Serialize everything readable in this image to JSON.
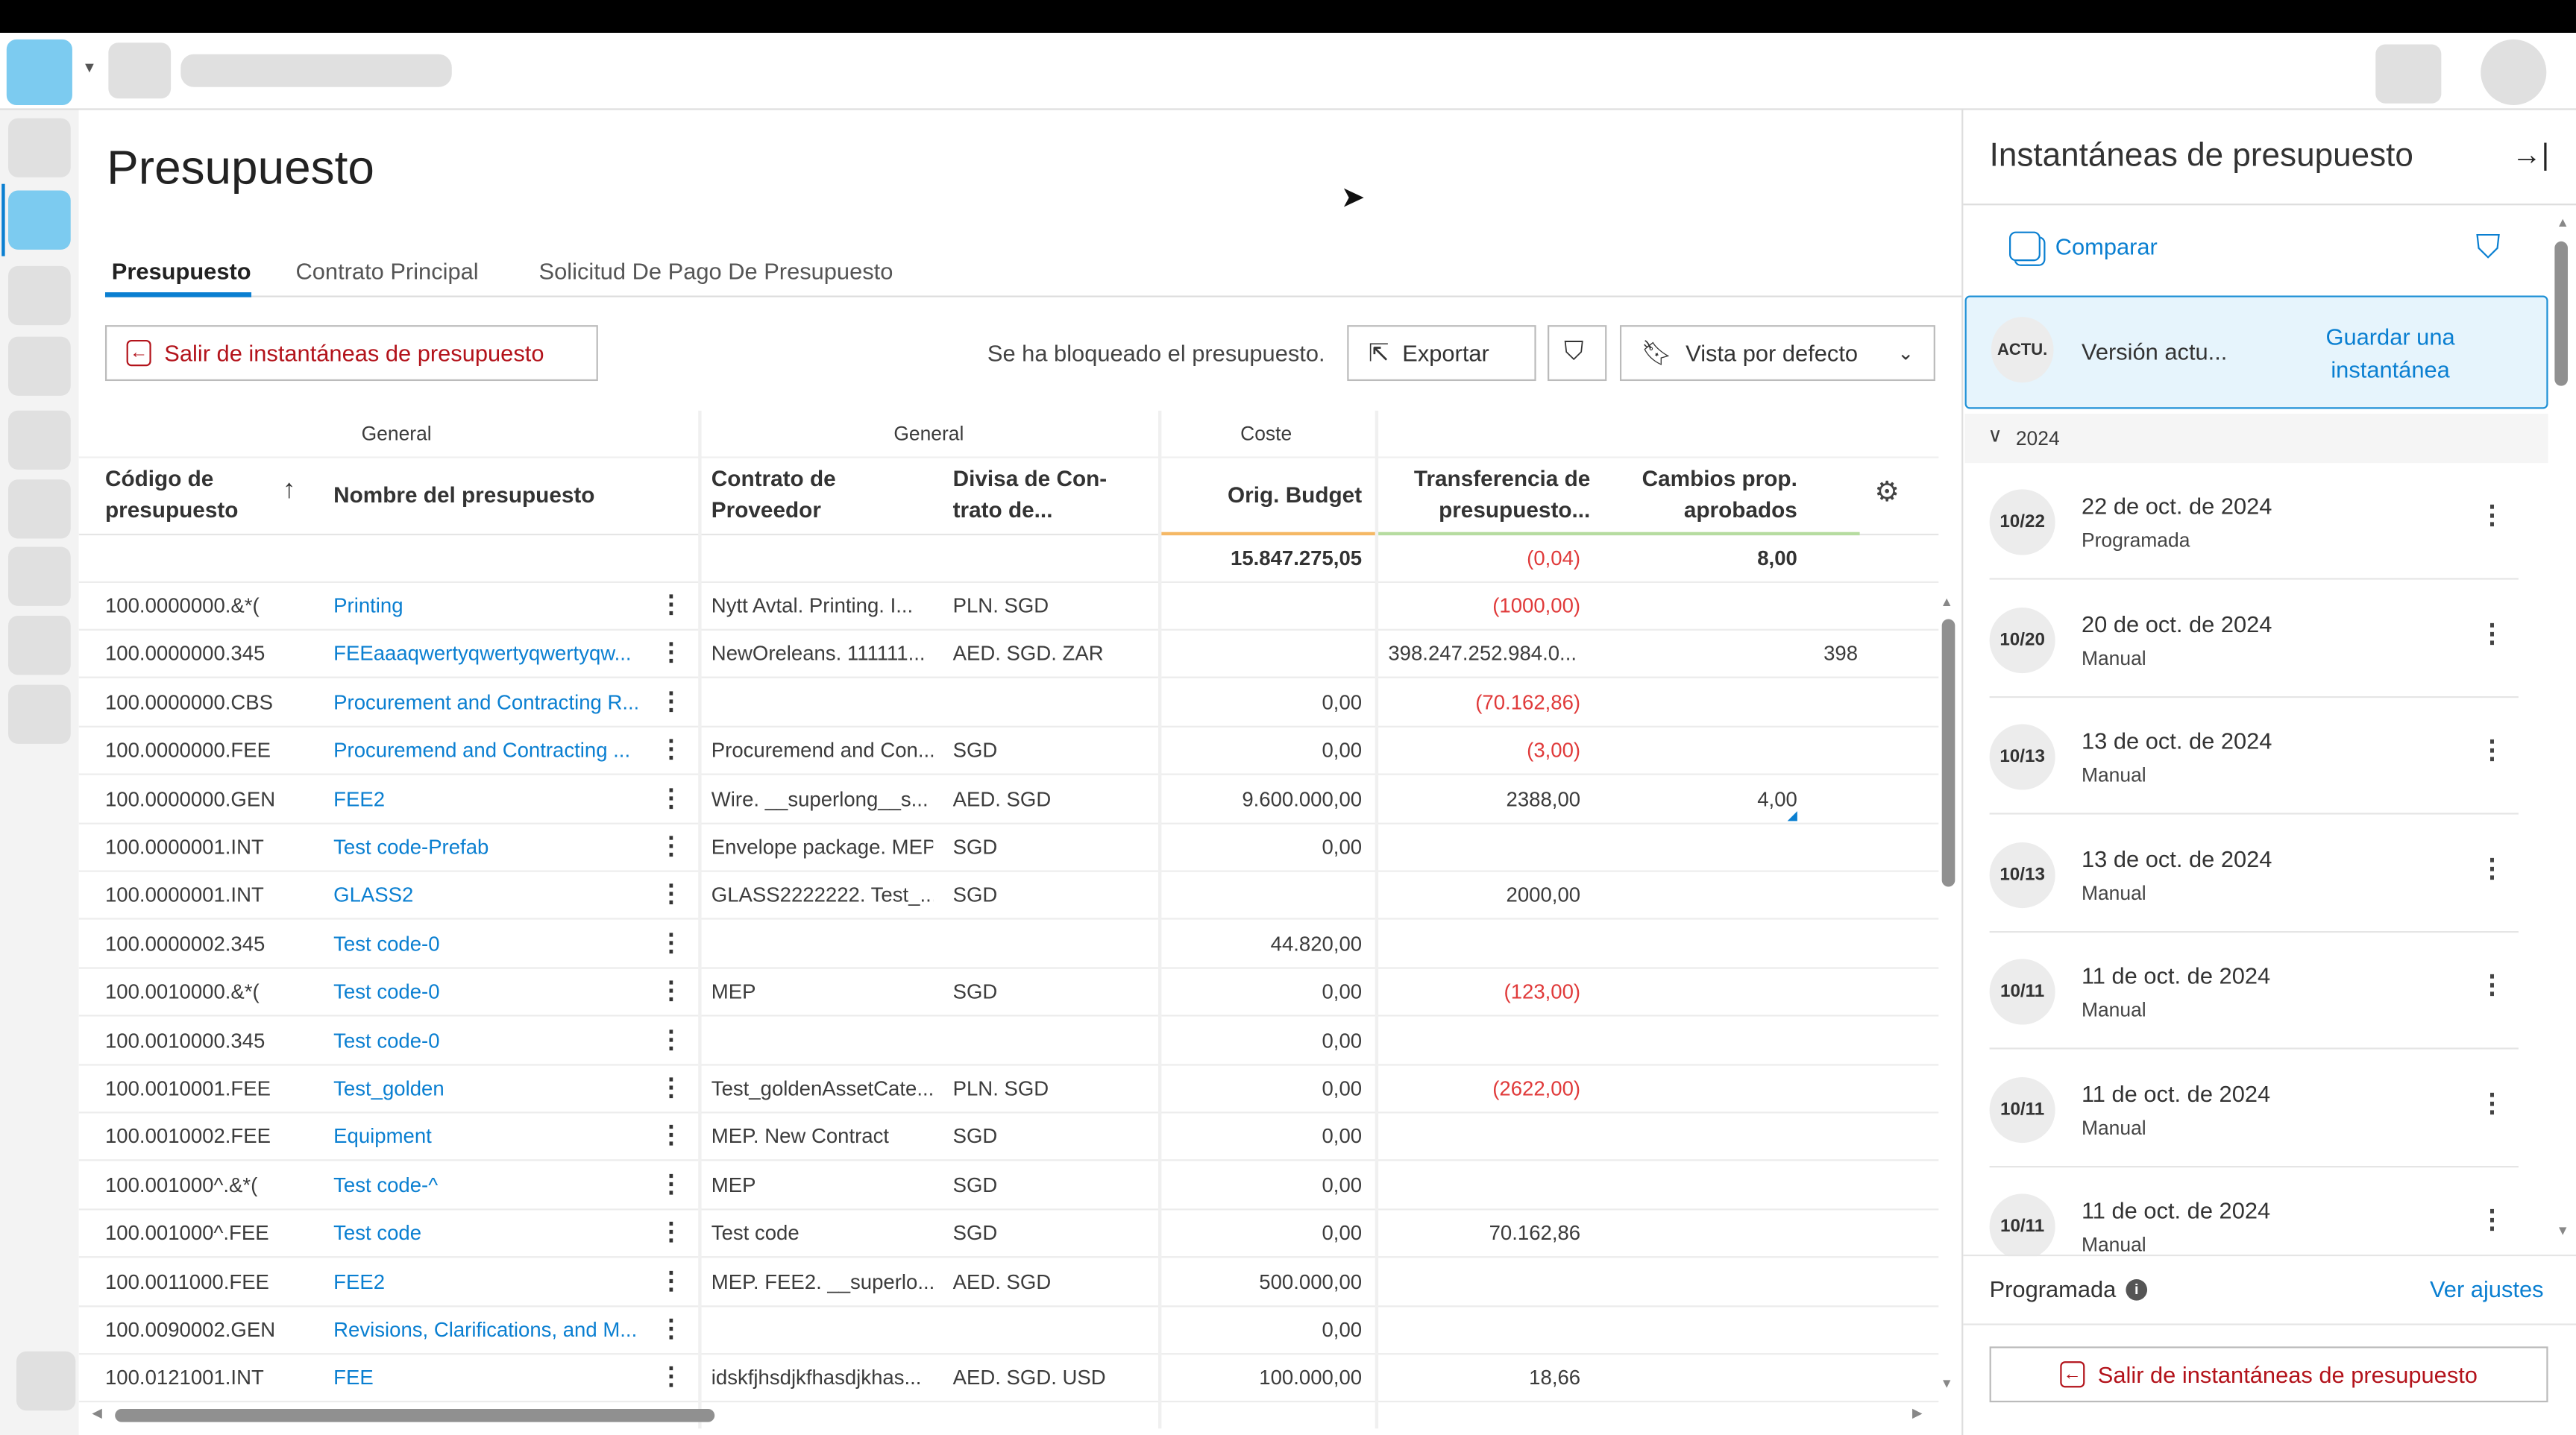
{
  "page": {
    "title": "Presupuesto"
  },
  "tabs": [
    {
      "label": "Presupuesto",
      "active": true
    },
    {
      "label": "Contrato Principal",
      "active": false
    },
    {
      "label": "Solicitud De Pago De Presupuesto",
      "active": false
    }
  ],
  "toolbar": {
    "exit_snapshots": "Salir de instantáneas de presupuesto",
    "locked_status": "Se ha bloqueado el presupuesto.",
    "export": "Exportar",
    "view": "Vista por defecto"
  },
  "table": {
    "groups": [
      "General",
      "General",
      "Coste"
    ],
    "columns": {
      "code": "Código de presupuesto",
      "name": "Nombre del presupuesto",
      "contract": "Contrato de Proveedor",
      "currency": "Divisa de Con-trato de...",
      "orig_budget": "Orig. Budget",
      "transfer": "Transferencia de presupuesto...",
      "changes": "Cambios prop. aprobados"
    },
    "totals": {
      "orig_budget": "15.847.275,05",
      "transfer": "(0,04)",
      "changes": "8,00"
    },
    "rows": [
      {
        "code": "100.0000000.&*(",
        "name": "Printing",
        "contract": "Nytt Avtal. Printing. I...",
        "currency": "PLN. SGD",
        "orig": "",
        "transfer": "(1000,00)",
        "changes": "",
        "extra": ""
      },
      {
        "code": "100.0000000.345",
        "name": "FEEaaaqwertyqwertyqwertyqw...",
        "contract": "NewOreleans. 111111...",
        "currency": "AED. SGD. ZAR",
        "orig": "",
        "transfer": "398.247.252.984.0...",
        "changes": "",
        "extra": "398."
      },
      {
        "code": "100.0000000.CBS",
        "name": "Procurement and Contracting R...",
        "contract": "",
        "currency": "",
        "orig": "0,00",
        "transfer": "(70.162,86)",
        "changes": "",
        "extra": ""
      },
      {
        "code": "100.0000000.FEE",
        "name": "Procuremend and Contracting ...",
        "contract": "Procuremend and Con...",
        "currency": "SGD",
        "orig": "0,00",
        "transfer": "(3,00)",
        "changes": "",
        "extra": ""
      },
      {
        "code": "100.0000000.GEN",
        "name": "FEE2",
        "contract": "Wire. __superlong__s...",
        "currency": "AED. SGD",
        "orig": "9.600.000,00",
        "transfer": "2388,00",
        "changes": "4,00",
        "extra": ""
      },
      {
        "code": "100.0000001.INT",
        "name": "Test code-Prefab",
        "contract": "Envelope package. MEP",
        "currency": "SGD",
        "orig": "0,00",
        "transfer": "",
        "changes": "",
        "extra": ""
      },
      {
        "code": "100.0000001.INT",
        "name": "GLASS2",
        "contract": "GLASS2222222. Test_...",
        "currency": "SGD",
        "orig": "",
        "transfer": "2000,00",
        "changes": "",
        "extra": ""
      },
      {
        "code": "100.0000002.345",
        "name": "Test code-0",
        "contract": "",
        "currency": "",
        "orig": "44.820,00",
        "transfer": "",
        "changes": "",
        "extra": ""
      },
      {
        "code": "100.0010000.&*(",
        "name": "Test code-0",
        "contract": "MEP",
        "currency": "SGD",
        "orig": "0,00",
        "transfer": "(123,00)",
        "changes": "",
        "extra": ""
      },
      {
        "code": "100.0010000.345",
        "name": "Test code-0",
        "contract": "",
        "currency": "",
        "orig": "0,00",
        "transfer": "",
        "changes": "",
        "extra": ""
      },
      {
        "code": "100.0010001.FEE",
        "name": "Test_golden",
        "contract": "Test_goldenAssetCate...",
        "currency": "PLN. SGD",
        "orig": "0,00",
        "transfer": "(2622,00)",
        "changes": "",
        "extra": ""
      },
      {
        "code": "100.0010002.FEE",
        "name": "Equipment",
        "contract": "MEP. New Contract",
        "currency": "SGD",
        "orig": "0,00",
        "transfer": "",
        "changes": "",
        "extra": ""
      },
      {
        "code": "100.001000^.&*(",
        "name": "Test code-^",
        "contract": "MEP",
        "currency": "SGD",
        "orig": "0,00",
        "transfer": "",
        "changes": "",
        "extra": ""
      },
      {
        "code": "100.001000^.FEE",
        "name": "Test code",
        "contract": "Test code",
        "currency": "SGD",
        "orig": "0,00",
        "transfer": "70.162,86",
        "changes": "",
        "extra": ""
      },
      {
        "code": "100.0011000.FEE",
        "name": "FEE2",
        "contract": "MEP. FEE2. __superlo...",
        "currency": "AED. SGD",
        "orig": "500.000,00",
        "transfer": "",
        "changes": "",
        "extra": ""
      },
      {
        "code": "100.0090002.GEN",
        "name": "Revisions, Clarifications, and M...",
        "contract": "",
        "currency": "",
        "orig": "0,00",
        "transfer": "",
        "changes": "",
        "extra": ""
      },
      {
        "code": "100.0121001.INT",
        "name": "FEE",
        "contract": "idskfjhsdjkfhasdjkhas...",
        "currency": "AED. SGD. USD",
        "orig": "100.000,00",
        "transfer": "18,66",
        "changes": "",
        "extra": ""
      }
    ]
  },
  "panel": {
    "title": "Instantáneas de presupuesto",
    "compare": "Comparar",
    "current": {
      "badge": "ACTU.",
      "label": "Versión actu...",
      "save": "Guardar una instantánea"
    },
    "year": "2024",
    "snapshots": [
      {
        "badge": "10/22",
        "date": "22 de oct. de 2024",
        "type": "Programada"
      },
      {
        "badge": "10/20",
        "date": "20 de oct. de 2024",
        "type": "Manual"
      },
      {
        "badge": "10/13",
        "date": "13 de oct. de 2024",
        "type": "Manual"
      },
      {
        "badge": "10/13",
        "date": "13 de oct. de 2024",
        "type": "Manual"
      },
      {
        "badge": "10/11",
        "date": "11 de oct. de 2024",
        "type": "Manual"
      },
      {
        "badge": "10/11",
        "date": "11 de oct. de 2024",
        "type": "Manual"
      },
      {
        "badge": "10/11",
        "date": "11 de oct. de 2024",
        "type": "Manual"
      }
    ],
    "schedule_label": "Programada",
    "settings_link": "Ver ajustes",
    "exit": "Salir de instantáneas de presupuesto"
  },
  "colors": {
    "accent": "#0a7fd1",
    "negative": "#e03a3a",
    "exit": "#b3131b",
    "highlight_bg": "#e6f4fc"
  }
}
